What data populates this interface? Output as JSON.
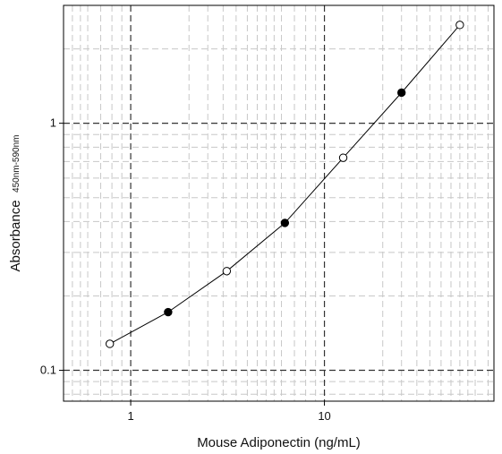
{
  "chart_data": {
    "type": "line",
    "xlabel": "Mouse Adiponectin (ng/mL)",
    "ylabel_main": "Absorbance",
    "ylabel_sub": "450nm-590nm",
    "x_scale": "log",
    "y_scale": "log",
    "xlim": [
      0.45,
      75
    ],
    "ylim": [
      0.075,
      3.0
    ],
    "x_ticks": [
      {
        "value": 1,
        "label": "1"
      },
      {
        "value": 10,
        "label": "10"
      }
    ],
    "y_ticks": [
      {
        "value": 0.1,
        "label": "0.1"
      },
      {
        "value": 1,
        "label": "1"
      }
    ],
    "grid": true,
    "series": [
      {
        "x": [
          0.78,
          1.56,
          3.13,
          6.25,
          12.5,
          25,
          50
        ],
        "y": [
          0.128,
          0.172,
          0.252,
          0.395,
          0.725,
          1.33,
          2.5
        ],
        "filled": [
          false,
          true,
          false,
          true,
          false,
          true,
          false
        ]
      }
    ],
    "colors": {
      "line": "#000000",
      "grid_major": "#333333",
      "grid_minor": "#c8c8c8"
    }
  }
}
